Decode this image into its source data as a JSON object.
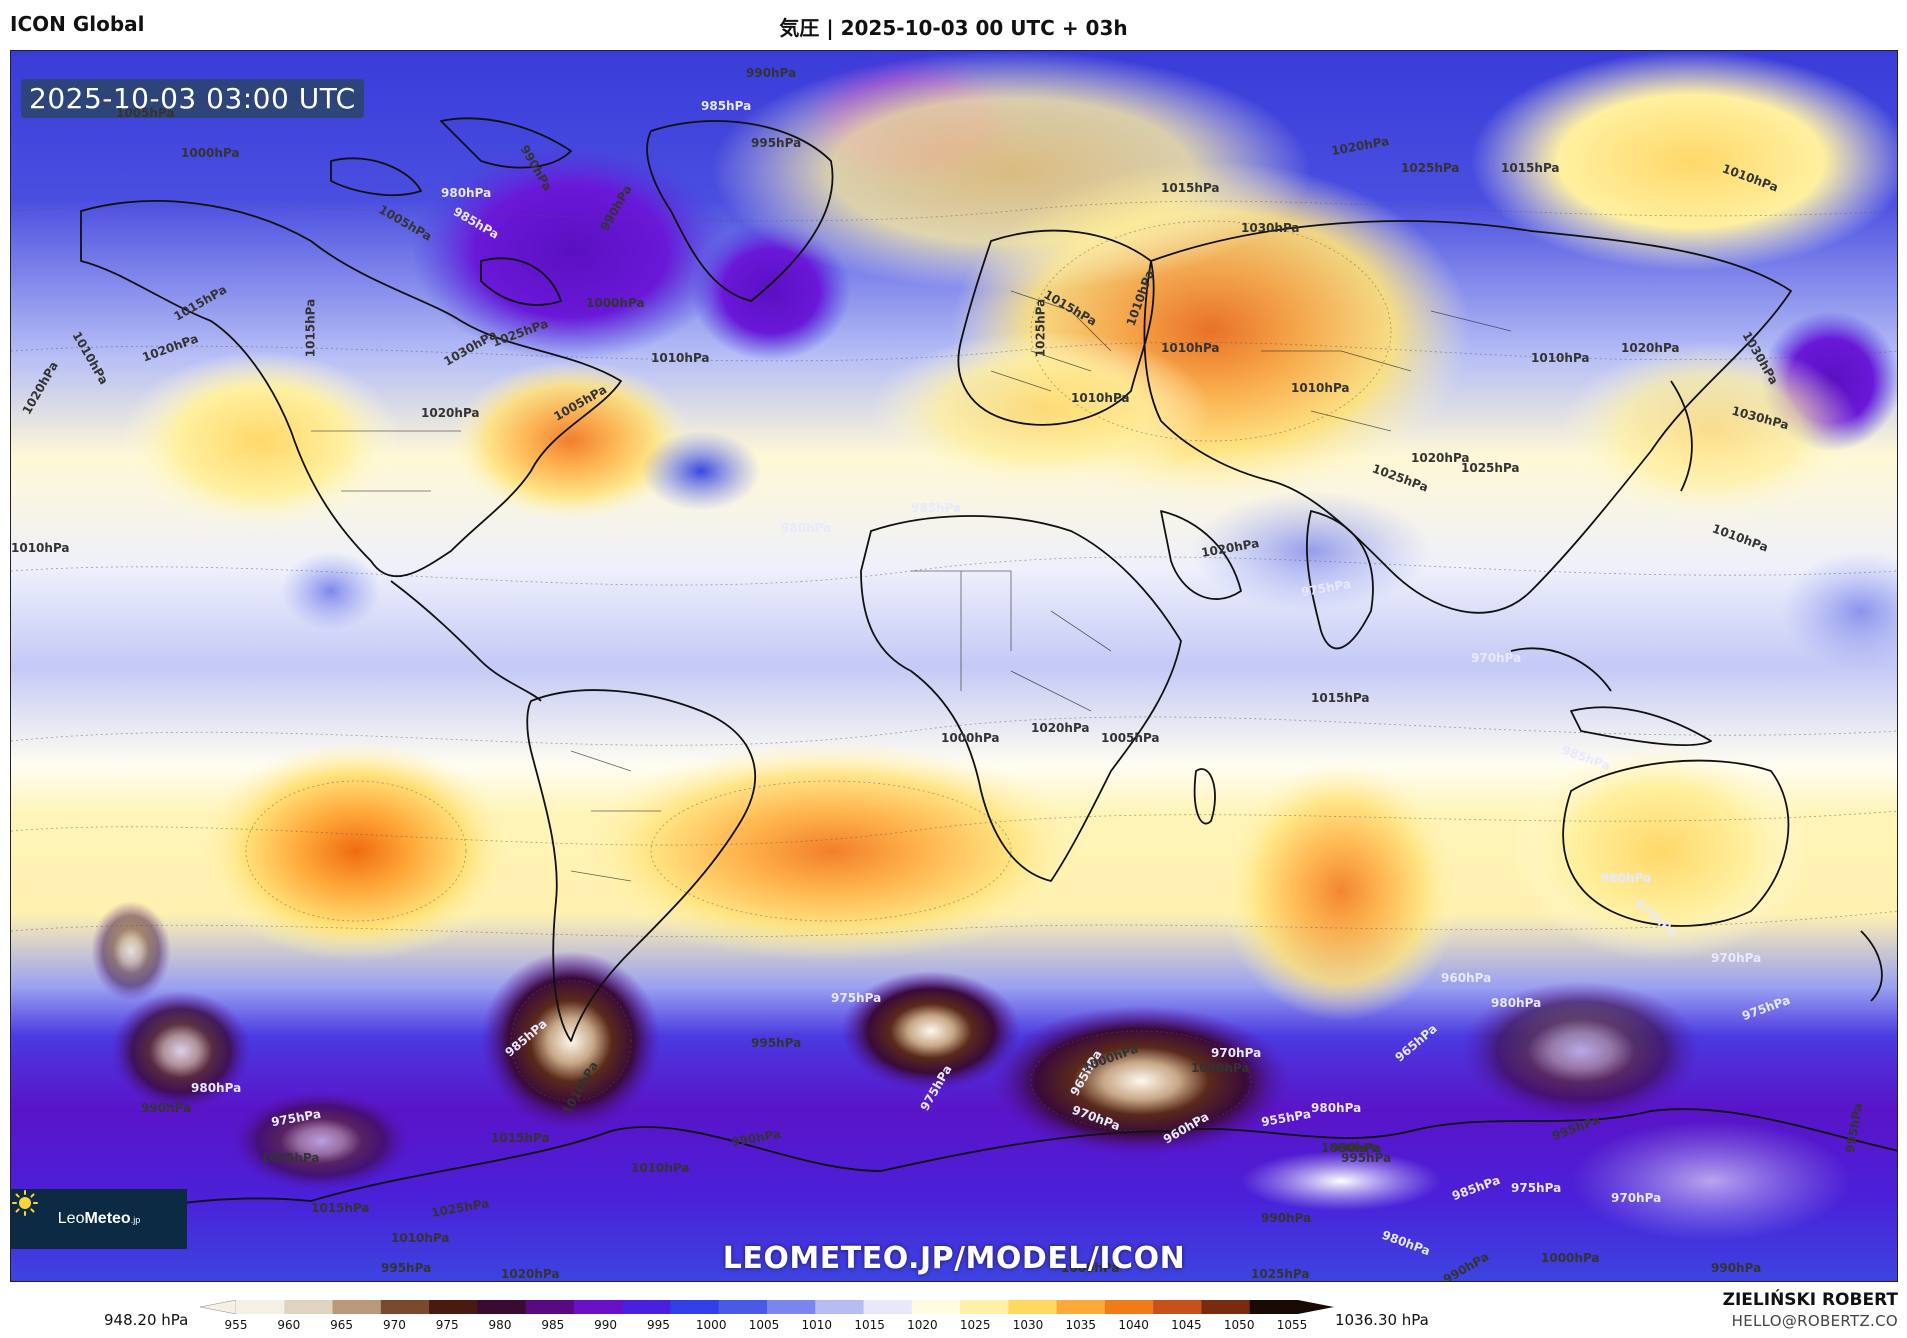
{
  "header": {
    "model_name": "ICON Global",
    "title": "気圧 | 2025-10-03 00 UTC + 03h"
  },
  "map": {
    "timestamp": "2025-10-03 03:00 UTC",
    "watermark": "LEOMETEO.JP/MODEL/ICON",
    "logo": {
      "brand_light": "Leo",
      "brand_bold": "Meteo",
      "suffix": ".jp",
      "icon": "sun-icon"
    },
    "isobar_labels": [
      "1005hPa",
      "1000hPa",
      "990hPa",
      "985hPa",
      "995hPa",
      "980hPa",
      "990hPa",
      "990hPa",
      "985hPa",
      "1005hPa",
      "1000hPa",
      "1015hPa",
      "1020hPa",
      "1010hPa",
      "1020hPa",
      "1015hPa",
      "1030hPa",
      "1025hPa",
      "1020hPa",
      "1005hPa",
      "1010hPa",
      "1020hPa",
      "1025hPa",
      "1015hPa",
      "1030hPa",
      "1015hPa",
      "1010hPa",
      "1010hPa",
      "1010hPa",
      "1010hPa",
      "1010hPa",
      "1010hPa",
      "1025hPa",
      "1015hPa",
      "1020hPa",
      "1030hPa",
      "1020hPa",
      "1030hPa",
      "1025hPa",
      "1010hPa",
      "1025hPa",
      "1020hPa",
      "1005hPa",
      "1015hPa",
      "1020hPa",
      "1000hPa",
      "1010hPa",
      "980hPa",
      "985hPa",
      "975hPa",
      "970hPa",
      "985hPa",
      "980hPa",
      "975hPa",
      "970hPa",
      "975hPa",
      "960hPa",
      "980hPa",
      "965hPa",
      "980hPa",
      "970hPa",
      "955hPa",
      "960hPa",
      "965hPa",
      "970hPa",
      "975hPa",
      "975hPa",
      "995hPa",
      "990hPa",
      "985hPa",
      "1010hPa",
      "1015hPa",
      "1010hPa",
      "1000hPa",
      "1000hPa",
      "990hPa",
      "995hPa",
      "975hPa",
      "985hPa",
      "970hPa",
      "980hPa",
      "990hPa",
      "1000hPa",
      "995hPa",
      "990hPa",
      "995hPa",
      "1000hPa",
      "990hPa",
      "1005hPa",
      "1015hPa",
      "1025hPa",
      "1010hPa",
      "1020hPa",
      "1025hPa",
      "995hPa",
      "1020hPa",
      "990hPa",
      "980hPa",
      "975hPa"
    ]
  },
  "legend": {
    "min_label": "948.20 hPa",
    "max_label": "1036.30 hPa",
    "ticks": [
      "955",
      "960",
      "965",
      "970",
      "975",
      "980",
      "985",
      "990",
      "995",
      "1000",
      "1005",
      "1010",
      "1015",
      "1020",
      "1025",
      "1030",
      "1035",
      "1040",
      "1045",
      "1050",
      "1055"
    ],
    "colors": [
      "#f5f0e6",
      "#e0d3bf",
      "#b89a78",
      "#7a4a2a",
      "#4a1a10",
      "#3a0a30",
      "#5a0a80",
      "#6a10c8",
      "#4a20e0",
      "#3040e8",
      "#4a5ae8",
      "#7a86ee",
      "#b8bcf4",
      "#e8e8fa",
      "#fffbe0",
      "#fff2a8",
      "#ffd860",
      "#ffa93a",
      "#f07b1a",
      "#c8501a",
      "#7a2a10",
      "#1a0a05"
    ]
  },
  "credits": {
    "author": "ZIELIŃSKI ROBERT",
    "email": "HELLO@ROBERTZ.CO"
  }
}
